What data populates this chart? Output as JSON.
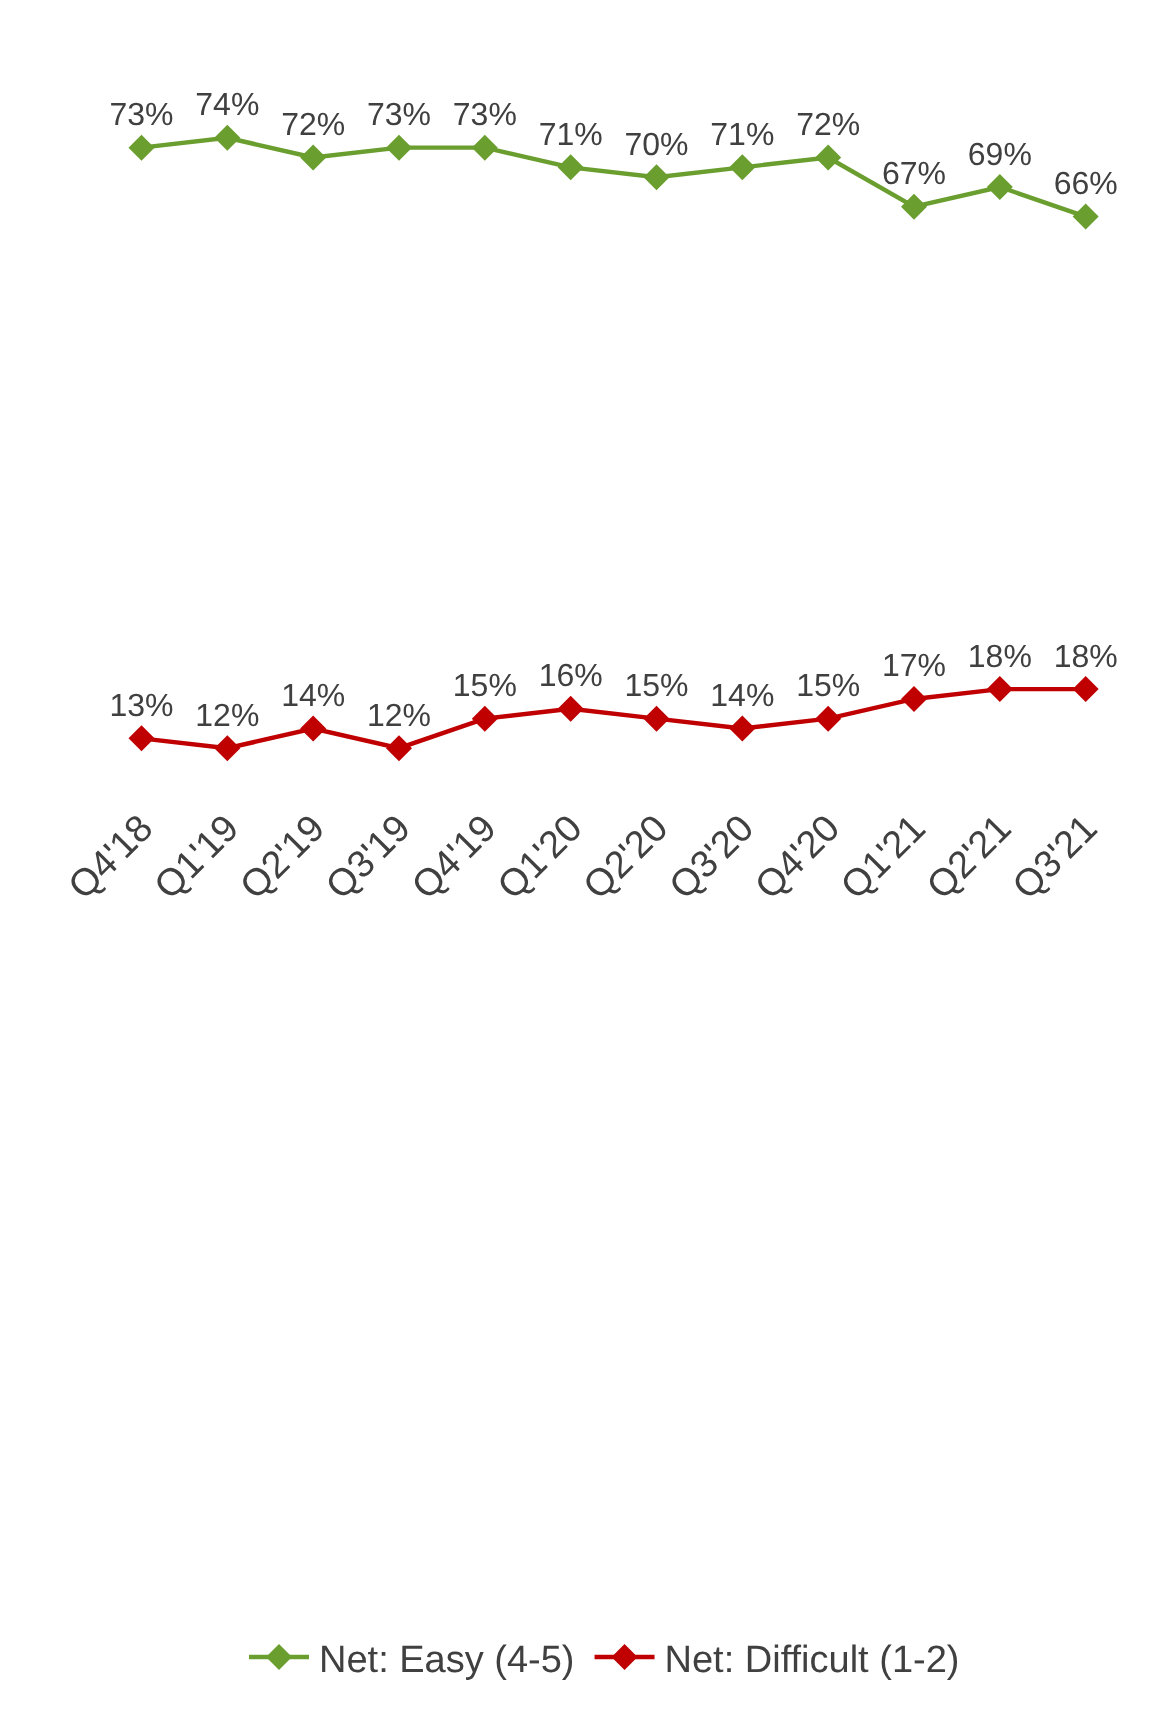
{
  "chart_data": {
    "type": "line",
    "tick_labels": "x",
    "categories": [
      "Q4'18",
      "Q1'19",
      "Q2'19",
      "Q3'19",
      "Q4'19",
      "Q1'20",
      "Q2'20",
      "Q3'20",
      "Q4'20",
      "Q1'21",
      "Q2'21",
      "Q3'21"
    ],
    "series": [
      {
        "name": "Net: Easy (4-5)",
        "color": "#6a9e2f",
        "values": [
          73,
          74,
          72,
          73,
          73,
          71,
          70,
          71,
          72,
          67,
          69,
          66
        ],
        "value_labels": [
          "73%",
          "74%",
          "72%",
          "73%",
          "73%",
          "71%",
          "70%",
          "71%",
          "72%",
          "67%",
          "69%",
          "66%"
        ]
      },
      {
        "name": "Net: Difficult (1-2)",
        "color": "#c00000",
        "values": [
          13,
          12,
          14,
          12,
          15,
          16,
          15,
          14,
          15,
          17,
          18,
          18
        ],
        "value_labels": [
          "13%",
          "12%",
          "14%",
          "12%",
          "15%",
          "16%",
          "15%",
          "14%",
          "15%",
          "17%",
          "18%",
          "18%"
        ]
      }
    ],
    "legend": "bottom",
    "marker": "diamond",
    "line_style": "solid"
  }
}
